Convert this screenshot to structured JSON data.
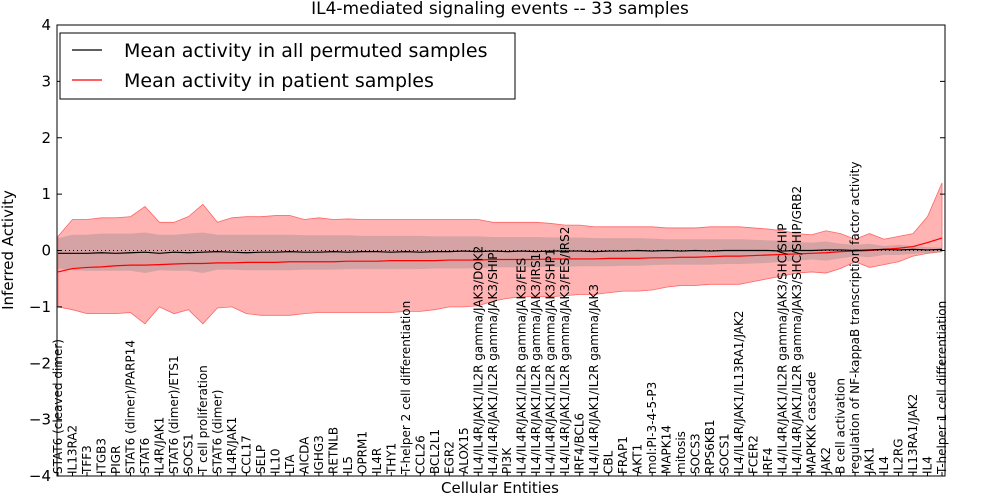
{
  "chart_data": {
    "type": "line",
    "title": "IL4-mediated signaling events -- 33 samples",
    "xlabel": "Cellular Entities",
    "ylabel": "Inferred Activity",
    "ylim": [
      -4,
      4
    ],
    "yticks": [
      "-4",
      "-3",
      "-2",
      "-1",
      "0",
      "1",
      "2",
      "3",
      "4"
    ],
    "legend": {
      "placement": "top-left",
      "entries": [
        {
          "label": "Mean activity in all permuted samples",
          "color": "#000000"
        },
        {
          "label": "Mean activity in patient samples",
          "color": "#ff0000"
        }
      ]
    },
    "band_color": "#ff9999",
    "entities": [
      "STAT6 (cleaved dimer)",
      "IL13RA2",
      "TFF3",
      "ITGB3",
      "PIGR",
      "STAT6 (dimer)/PARP14",
      "STAT6",
      "IL4R/JAK1",
      "STAT6 (dimer)/ETS1",
      "SOCS1",
      "T cell proliferation",
      "STAT6 (dimer)",
      "IL4R/JAK1",
      "CCL17",
      "SELP",
      "IL10",
      "LTA",
      "AICDA",
      "IGHG3",
      "RETNLB",
      "IL5",
      "OPRM1",
      "IL4R",
      "THY1",
      "T-helper 2 cell differentiation",
      "CCL26",
      "BCL2L1",
      "EGR2",
      "ALOX15",
      "IL4/IL4R/JAK1/IL2R gamma/JAK3/DOK2",
      "IL4/IL4R/JAK1/IL2R gamma/JAK3/SHIP",
      "PI3K",
      "IL4/IL4R/JAK1/IL2R gamma/JAK3/FES",
      "IL4/IL4R/JAK1/IL2R gamma/JAK3/IRS1",
      "IL4/IL4R/JAK1/IL2R gamma/JAK3/SHP1",
      "IL4/IL4R/JAK1/IL2R gamma/JAK3/FES/IRS2",
      "IRF4/BCL6",
      "IL4/IL4R/JAK1/IL2R gamma/JAK3",
      "CBL",
      "FRAP1",
      "AKT1",
      "mol:PI-3-4-5-P3",
      "MAPK14",
      "mitosis",
      "SOCS3",
      "RPS6KB1",
      "SOCS1",
      "IL4/IL4R/JAK1/IL13RA1/JAK2",
      "FCER2",
      "IRF4",
      "IL4/IL4R/JAK1/IL2R gamma/JAK3/SHC/SHIP",
      "IL4/IL4R/JAK1/IL2R gamma/JAK3/SHC/SHIP/GRB2",
      "MAPKKK cascade",
      "JAK2",
      "B cell activation",
      "regulation of NF-kappaB transcription factor activity",
      "JAK1",
      "IL4",
      "IL2RG",
      "IL13RA1/JAK2",
      "IL4",
      "T-helper 1 cell differentiation"
    ],
    "series": [
      {
        "name": "Mean activity in all permuted samples",
        "values": [
          -0.05,
          -0.05,
          -0.05,
          -0.04,
          -0.05,
          -0.04,
          -0.03,
          -0.05,
          -0.03,
          -0.04,
          -0.03,
          -0.02,
          -0.03,
          -0.04,
          -0.03,
          -0.03,
          -0.02,
          -0.03,
          -0.03,
          -0.02,
          -0.03,
          -0.02,
          -0.02,
          -0.03,
          -0.02,
          -0.03,
          -0.02,
          -0.02,
          -0.01,
          -0.02,
          -0.01,
          -0.02,
          -0.01,
          -0.02,
          -0.01,
          -0.01,
          -0.01,
          -0.02,
          -0.01,
          -0.01,
          0.0,
          -0.01,
          0.0,
          -0.01,
          0.0,
          -0.01,
          0.0,
          0.0,
          0.0,
          0.0,
          -0.01,
          0.0,
          0.0,
          0.01,
          0.01,
          0.0,
          0.01,
          0.02,
          0.01,
          0.02,
          0.01,
          0.02
        ]
      },
      {
        "name": "Mean activity in patient samples",
        "values": [
          -0.38,
          -0.32,
          -0.3,
          -0.29,
          -0.27,
          -0.26,
          -0.26,
          -0.25,
          -0.24,
          -0.23,
          -0.23,
          -0.22,
          -0.22,
          -0.21,
          -0.21,
          -0.21,
          -0.2,
          -0.2,
          -0.2,
          -0.2,
          -0.19,
          -0.19,
          -0.19,
          -0.18,
          -0.18,
          -0.18,
          -0.18,
          -0.17,
          -0.17,
          -0.17,
          -0.16,
          -0.16,
          -0.16,
          -0.16,
          -0.15,
          -0.15,
          -0.15,
          -0.15,
          -0.14,
          -0.14,
          -0.14,
          -0.13,
          -0.13,
          -0.12,
          -0.12,
          -0.11,
          -0.1,
          -0.1,
          -0.09,
          -0.08,
          -0.07,
          -0.06,
          -0.05,
          -0.04,
          -0.02,
          -0.01,
          0.0,
          0.02,
          0.04,
          0.07,
          0.14,
          0.22
        ]
      }
    ],
    "bands": {
      "patient_upper": [
        0.25,
        0.55,
        0.55,
        0.58,
        0.58,
        0.6,
        0.78,
        0.5,
        0.5,
        0.6,
        0.82,
        0.5,
        0.58,
        0.6,
        0.6,
        0.62,
        0.62,
        0.55,
        0.58,
        0.55,
        0.56,
        0.55,
        0.55,
        0.55,
        0.55,
        0.55,
        0.55,
        0.55,
        0.55,
        0.55,
        0.5,
        0.5,
        0.5,
        0.5,
        0.48,
        0.45,
        0.45,
        0.42,
        0.42,
        0.42,
        0.42,
        0.42,
        0.4,
        0.4,
        0.4,
        0.42,
        0.42,
        0.42,
        0.4,
        0.38,
        0.35,
        0.3,
        0.28,
        0.35,
        0.3,
        0.2,
        0.3,
        0.2,
        0.25,
        0.3,
        0.6,
        1.2
      ],
      "patient_lower": [
        -1.0,
        -1.05,
        -1.12,
        -1.12,
        -1.12,
        -1.1,
        -1.3,
        -1.0,
        -1.12,
        -1.05,
        -1.3,
        -1.02,
        -1.0,
        -1.12,
        -1.15,
        -1.15,
        -1.15,
        -1.12,
        -1.1,
        -1.1,
        -1.1,
        -1.1,
        -1.1,
        -1.1,
        -1.08,
        -1.08,
        -1.05,
        -1.0,
        -1.0,
        -0.98,
        -0.9,
        -0.85,
        -0.82,
        -0.82,
        -0.82,
        -0.8,
        -0.78,
        -0.78,
        -0.75,
        -0.72,
        -0.72,
        -0.7,
        -0.65,
        -0.62,
        -0.62,
        -0.6,
        -0.6,
        -0.6,
        -0.55,
        -0.5,
        -0.45,
        -0.4,
        -0.38,
        -0.4,
        -0.32,
        -0.2,
        -0.3,
        -0.25,
        -0.2,
        -0.1,
        -0.05,
        -0.02
      ],
      "permuted_upper": [
        0.22,
        0.28,
        0.28,
        0.3,
        0.3,
        0.3,
        0.32,
        0.28,
        0.28,
        0.3,
        0.32,
        0.28,
        0.28,
        0.28,
        0.28,
        0.28,
        0.28,
        0.27,
        0.27,
        0.27,
        0.27,
        0.26,
        0.26,
        0.26,
        0.26,
        0.26,
        0.25,
        0.25,
        0.25,
        0.25,
        0.24,
        0.24,
        0.24,
        0.24,
        0.23,
        0.23,
        0.23,
        0.22,
        0.22,
        0.22,
        0.22,
        0.21,
        0.2,
        0.2,
        0.2,
        0.2,
        0.2,
        0.2,
        0.19,
        0.18,
        0.17,
        0.15,
        0.14,
        0.16,
        0.12,
        0.1,
        0.12,
        0.08,
        0.1,
        0.08,
        0.06,
        0.05
      ],
      "permuted_lower": [
        -0.32,
        -0.35,
        -0.36,
        -0.36,
        -0.36,
        -0.36,
        -0.4,
        -0.35,
        -0.36,
        -0.36,
        -0.4,
        -0.34,
        -0.34,
        -0.35,
        -0.35,
        -0.35,
        -0.35,
        -0.34,
        -0.34,
        -0.34,
        -0.33,
        -0.33,
        -0.33,
        -0.33,
        -0.33,
        -0.33,
        -0.32,
        -0.32,
        -0.32,
        -0.31,
        -0.3,
        -0.3,
        -0.3,
        -0.3,
        -0.29,
        -0.29,
        -0.28,
        -0.28,
        -0.28,
        -0.27,
        -0.27,
        -0.26,
        -0.25,
        -0.25,
        -0.25,
        -0.25,
        -0.24,
        -0.24,
        -0.23,
        -0.22,
        -0.2,
        -0.18,
        -0.16,
        -0.18,
        -0.14,
        -0.1,
        -0.12,
        -0.08,
        -0.08,
        -0.06,
        -0.04,
        -0.03
      ]
    }
  }
}
